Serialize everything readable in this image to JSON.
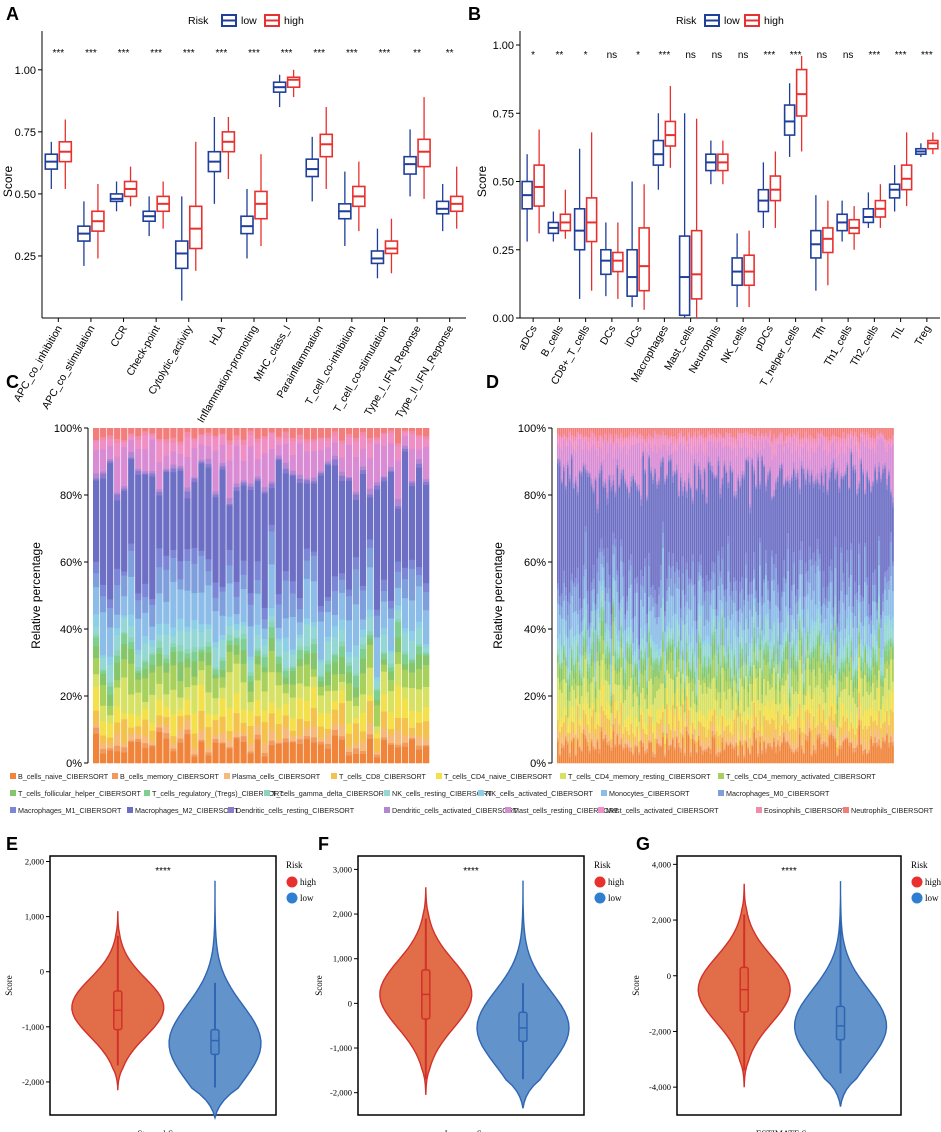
{
  "panels": {
    "a": "A",
    "b": "B",
    "c": "C",
    "d": "D",
    "e": "E",
    "f": "F",
    "g": "G"
  },
  "risk_legend": {
    "title": "Risk",
    "low": "low",
    "high": "high"
  },
  "colors": {
    "low": "#1f3f9a",
    "high": "#e8312f",
    "violin_high": "#e0663f",
    "violin_low": "#5b8dc8",
    "violin_high_line": "#d2302a",
    "violin_low_line": "#2f66b3"
  },
  "chart_data": [
    {
      "id": "A",
      "type": "box",
      "ylabel": "Score",
      "ylim": [
        0.0,
        1.1
      ],
      "yticks": [
        "0.25",
        "0.50",
        "0.75",
        "1.00"
      ],
      "categories": [
        "APC_co_inhibition",
        "APC_co_stimulation",
        "CCR",
        "Check-point",
        "Cytolytic_activity",
        "HLA",
        "Inflammation-promoting",
        "MHC_class_I",
        "Parainflammation",
        "T_cell_co-inhibition",
        "T_cell_co-stimulation",
        "Type_I_IFN_Reponse",
        "Type_II_IFN_Reponse"
      ],
      "significance": [
        "***",
        "***",
        "***",
        "***",
        "***",
        "***",
        "***",
        "***",
        "***",
        "***",
        "***",
        "**",
        "**"
      ],
      "series": [
        {
          "name": "low",
          "boxes": [
            [
              0.52,
              0.6,
              0.63,
              0.66,
              0.71
            ],
            [
              0.21,
              0.31,
              0.34,
              0.37,
              0.47
            ],
            [
              0.43,
              0.47,
              0.48,
              0.5,
              0.55
            ],
            [
              0.33,
              0.39,
              0.41,
              0.43,
              0.49
            ],
            [
              0.07,
              0.2,
              0.26,
              0.31,
              0.49
            ],
            [
              0.46,
              0.59,
              0.63,
              0.67,
              0.81
            ],
            [
              0.24,
              0.34,
              0.37,
              0.41,
              0.52
            ],
            [
              0.85,
              0.91,
              0.93,
              0.95,
              0.98
            ],
            [
              0.47,
              0.57,
              0.6,
              0.64,
              0.73
            ],
            [
              0.29,
              0.4,
              0.43,
              0.46,
              0.59
            ],
            [
              0.16,
              0.22,
              0.24,
              0.27,
              0.36
            ],
            [
              0.49,
              0.58,
              0.62,
              0.65,
              0.76
            ],
            [
              0.35,
              0.42,
              0.44,
              0.47,
              0.54
            ]
          ]
        },
        {
          "name": "high",
          "boxes": [
            [
              0.52,
              0.63,
              0.67,
              0.71,
              0.8
            ],
            [
              0.24,
              0.35,
              0.39,
              0.43,
              0.54
            ],
            [
              0.45,
              0.49,
              0.52,
              0.55,
              0.61
            ],
            [
              0.36,
              0.43,
              0.46,
              0.49,
              0.55
            ],
            [
              0.19,
              0.28,
              0.36,
              0.45,
              0.71
            ],
            [
              0.56,
              0.67,
              0.71,
              0.75,
              0.81
            ],
            [
              0.29,
              0.4,
              0.46,
              0.51,
              0.66
            ],
            [
              0.89,
              0.93,
              0.96,
              0.97,
              1.0
            ],
            [
              0.52,
              0.65,
              0.7,
              0.74,
              0.85
            ],
            [
              0.35,
              0.45,
              0.49,
              0.53,
              0.63
            ],
            [
              0.18,
              0.26,
              0.28,
              0.31,
              0.4
            ],
            [
              0.48,
              0.61,
              0.67,
              0.72,
              0.89
            ],
            [
              0.36,
              0.43,
              0.46,
              0.49,
              0.61
            ]
          ]
        }
      ]
    },
    {
      "id": "B",
      "type": "box",
      "ylabel": "Score",
      "ylim": [
        0.0,
        1.0
      ],
      "yticks": [
        "0.00",
        "0.25",
        "0.50",
        "0.75",
        "1.00"
      ],
      "categories": [
        "aDCs",
        "B_cells",
        "CD8+_T_cells",
        "DCs",
        "iDCs",
        "Macrophages",
        "Mast_cells",
        "Neutrophils",
        "NK_cells",
        "pDCs",
        "T_helper_cells",
        "Tfh",
        "Th1_cells",
        "Th2_cells",
        "TIL",
        "Treg"
      ],
      "significance": [
        "*",
        "**",
        "*",
        "ns",
        "*",
        "***",
        "ns",
        "ns",
        "ns",
        "***",
        "***",
        "ns",
        "ns",
        "***",
        "***",
        "***"
      ],
      "series": [
        {
          "name": "low",
          "boxes": [
            [
              0.28,
              0.4,
              0.45,
              0.5,
              0.6
            ],
            [
              0.28,
              0.31,
              0.33,
              0.35,
              0.39
            ],
            [
              0.07,
              0.25,
              0.32,
              0.4,
              0.62
            ],
            [
              0.08,
              0.16,
              0.21,
              0.25,
              0.35
            ],
            [
              0.04,
              0.08,
              0.15,
              0.25,
              0.5
            ],
            [
              0.47,
              0.56,
              0.6,
              0.65,
              0.75
            ],
            [
              0.0,
              0.01,
              0.15,
              0.3,
              0.75
            ],
            [
              0.49,
              0.54,
              0.57,
              0.6,
              0.65
            ],
            [
              0.04,
              0.12,
              0.17,
              0.22,
              0.31
            ],
            [
              0.33,
              0.39,
              0.43,
              0.47,
              0.57
            ],
            [
              0.59,
              0.67,
              0.72,
              0.78,
              0.86
            ],
            [
              0.1,
              0.22,
              0.27,
              0.32,
              0.45
            ],
            [
              0.28,
              0.32,
              0.35,
              0.38,
              0.43
            ],
            [
              0.33,
              0.35,
              0.37,
              0.4,
              0.46
            ],
            [
              0.39,
              0.44,
              0.47,
              0.49,
              0.56
            ],
            [
              0.59,
              0.6,
              0.61,
              0.62,
              0.64
            ]
          ]
        },
        {
          "name": "high",
          "boxes": [
            [
              0.31,
              0.41,
              0.48,
              0.56,
              0.69
            ],
            [
              0.29,
              0.32,
              0.35,
              0.38,
              0.47
            ],
            [
              0.1,
              0.28,
              0.35,
              0.44,
              0.68
            ],
            [
              0.07,
              0.17,
              0.21,
              0.24,
              0.35
            ],
            [
              0.03,
              0.1,
              0.19,
              0.33,
              0.49
            ],
            [
              0.55,
              0.63,
              0.67,
              0.72,
              0.85
            ],
            [
              0.0,
              0.07,
              0.16,
              0.32,
              0.73
            ],
            [
              0.49,
              0.54,
              0.57,
              0.6,
              0.65
            ],
            [
              0.04,
              0.12,
              0.17,
              0.23,
              0.32
            ],
            [
              0.33,
              0.43,
              0.47,
              0.52,
              0.61
            ],
            [
              0.61,
              0.74,
              0.82,
              0.91,
              0.96
            ],
            [
              0.12,
              0.24,
              0.29,
              0.33,
              0.43
            ],
            [
              0.25,
              0.31,
              0.33,
              0.36,
              0.41
            ],
            [
              0.33,
              0.37,
              0.4,
              0.43,
              0.49
            ],
            [
              0.41,
              0.47,
              0.51,
              0.56,
              0.68
            ],
            [
              0.6,
              0.62,
              0.64,
              0.65,
              0.68
            ]
          ]
        }
      ]
    },
    {
      "id": "C",
      "type": "stacked-bar",
      "ylabel": "Relative percentage",
      "yticks": [
        "0%",
        "20%",
        "40%",
        "60%",
        "80%",
        "100%"
      ],
      "n_samples": 48
    },
    {
      "id": "D",
      "type": "stacked-bar",
      "ylabel": "Relative percentage",
      "yticks": [
        "0%",
        "20%",
        "40%",
        "60%",
        "80%",
        "100%"
      ],
      "n_samples": 170
    },
    {
      "id": "E",
      "type": "violin",
      "xlabel": "Stromal Score",
      "ylabel": "Score",
      "significance": "****",
      "ylim": [
        -2600,
        2100
      ],
      "yticks": [
        -2000,
        -1000,
        0,
        1000,
        2000
      ],
      "ytick_labels": [
        "-2,000",
        "-1,000",
        "0",
        "1,000",
        "2,000"
      ],
      "series": [
        {
          "name": "high",
          "min": -2150,
          "max": 1100,
          "q1": -1050,
          "median": -700,
          "q3": -350,
          "wlo": -1700,
          "whi": 650,
          "peak": -650
        },
        {
          "name": "low",
          "min": -2650,
          "max": 1650,
          "q1": -1500,
          "median": -1250,
          "q3": -1050,
          "wlo": -2100,
          "whi": -200,
          "peak": -1300
        }
      ]
    },
    {
      "id": "F",
      "type": "violin",
      "xlabel": "Immune Score",
      "ylabel": "Score",
      "significance": "****",
      "ylim": [
        -2500,
        3300
      ],
      "yticks": [
        -2000,
        -1000,
        0,
        1000,
        2000,
        3000
      ],
      "ytick_labels": [
        "-2,000",
        "-1,000",
        "0",
        "1,000",
        "2,000",
        "3,000"
      ],
      "series": [
        {
          "name": "high",
          "min": -2050,
          "max": 2600,
          "q1": -350,
          "median": 200,
          "q3": 750,
          "wlo": -1700,
          "whi": 1900,
          "peak": 200
        },
        {
          "name": "low",
          "min": -2350,
          "max": 2750,
          "q1": -850,
          "median": -550,
          "q3": -200,
          "wlo": -1700,
          "whi": 450,
          "peak": -550
        }
      ]
    },
    {
      "id": "G",
      "type": "violin",
      "xlabel": "ESTIMATE Score",
      "ylabel": "Score",
      "significance": "****",
      "ylim": [
        -5000,
        4300
      ],
      "yticks": [
        -4000,
        -2000,
        0,
        2000,
        4000
      ],
      "ytick_labels": [
        "-4,000",
        "-2,000",
        "0",
        "2,000",
        "4,000"
      ],
      "series": [
        {
          "name": "high",
          "min": -4000,
          "max": 3300,
          "q1": -1300,
          "median": -500,
          "q3": 300,
          "wlo": -3400,
          "whi": 2200,
          "peak": -500
        },
        {
          "name": "low",
          "min": -4700,
          "max": 3400,
          "q1": -2300,
          "median": -1800,
          "q3": -1100,
          "wlo": -3500,
          "whi": 2100,
          "peak": -1800
        }
      ]
    }
  ],
  "cell_types": [
    {
      "label": "B_cells_naive_CIBERSORT",
      "color": "#f0843a"
    },
    {
      "label": "B_cells_memory_CIBERSORT",
      "color": "#f29a5e"
    },
    {
      "label": "Plasma_cells_CIBERSORT",
      "color": "#f6b97a"
    },
    {
      "label": "T_cells_CD8_CIBERSORT",
      "color": "#f4c24c"
    },
    {
      "label": "T_cells_CD4_naive_CIBERSORT",
      "color": "#f4e04b"
    },
    {
      "label": "T_cells_CD4_memory_resting_CIBERSORT",
      "color": "#d7e265"
    },
    {
      "label": "T_cells_CD4_memory_activated_CIBERSORT",
      "color": "#a8d05c"
    },
    {
      "label": "T_cells_follicular_helper_CIBERSORT",
      "color": "#86c66a"
    },
    {
      "label": "T_cells_regulatory_(Tregs)_CIBERSORT",
      "color": "#7fcf92"
    },
    {
      "label": "T_cells_gamma_delta_CIBERSORT",
      "color": "#8dd5b8"
    },
    {
      "label": "NK_cells_resting_CIBERSORT",
      "color": "#95d7d4"
    },
    {
      "label": "NK_cells_activated_CIBERSORT",
      "color": "#8ccfe6"
    },
    {
      "label": "Monocytes_CIBERSORT",
      "color": "#8cbde8"
    },
    {
      "label": "Macrophages_M0_CIBERSORT",
      "color": "#7f9fdc"
    },
    {
      "label": "Macrophages_M1_CIBERSORT",
      "color": "#7b86d6"
    },
    {
      "label": "Macrophages_M2_CIBERSORT",
      "color": "#6c6fc4"
    },
    {
      "label": "Dendritic_cells_resting_CIBERSORT",
      "color": "#8b79cf"
    },
    {
      "label": "Dendritic_cells_activated_CIBERSORT",
      "color": "#b287d2"
    },
    {
      "label": "Mast_cells_resting_CIBERSORT",
      "color": "#d98bd4"
    },
    {
      "label": "Mast_cells_activated_CIBERSORT",
      "color": "#ef8fc6"
    },
    {
      "label": "Eosinophils_CIBERSORT",
      "color": "#f28aa8"
    },
    {
      "label": "Neutrophils_CIBERSORT",
      "color": "#f27d7b"
    }
  ]
}
